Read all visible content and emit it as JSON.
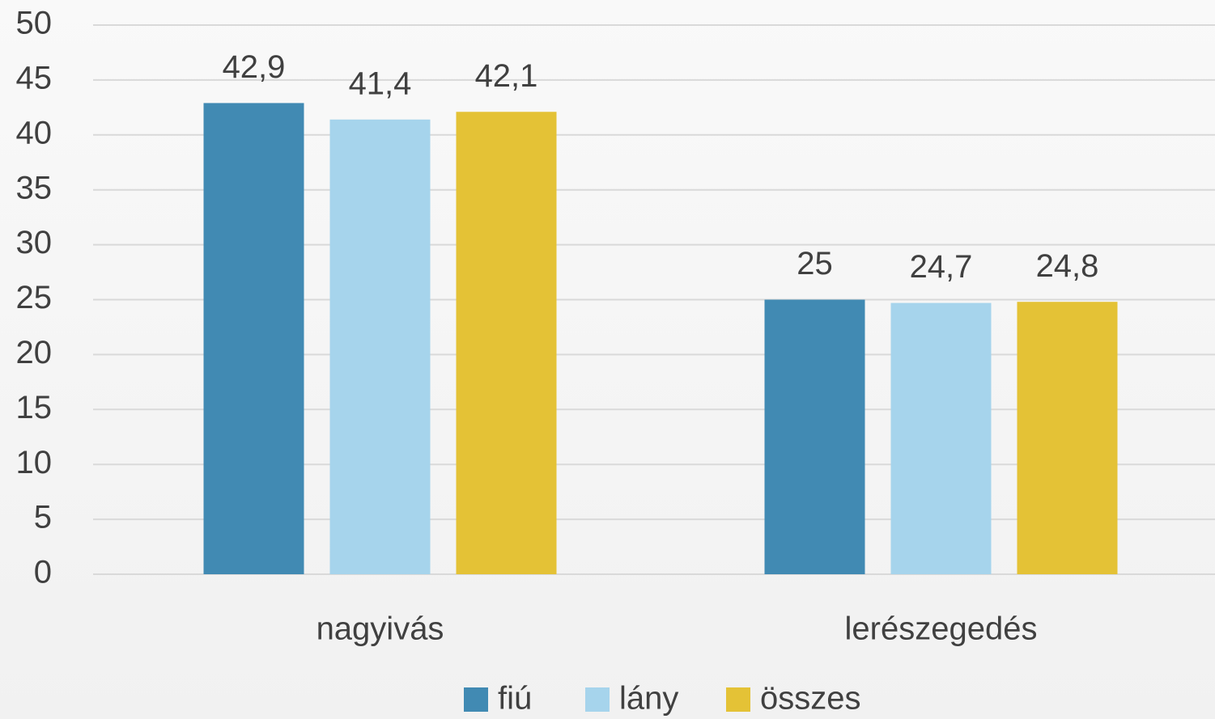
{
  "chart_data": {
    "type": "bar",
    "categories": [
      "nagyivás",
      "lerészegedés"
    ],
    "series": [
      {
        "name": "fiú",
        "color": "#418ab3",
        "values": [
          42.9,
          25
        ],
        "value_labels": [
          "42,9",
          "25"
        ]
      },
      {
        "name": "lány",
        "color": "#a6d4ec",
        "values": [
          41.4,
          24.7
        ],
        "value_labels": [
          "41,4",
          "24,7"
        ]
      },
      {
        "name": "összes",
        "color": "#e4c236",
        "values": [
          42.1,
          24.8
        ],
        "value_labels": [
          "42,1",
          "24,8"
        ]
      }
    ],
    "ylim": [
      0,
      50
    ],
    "yticks": [
      0,
      5,
      10,
      15,
      20,
      25,
      30,
      35,
      40,
      45,
      50
    ],
    "grid": true,
    "legend": "bottom"
  }
}
